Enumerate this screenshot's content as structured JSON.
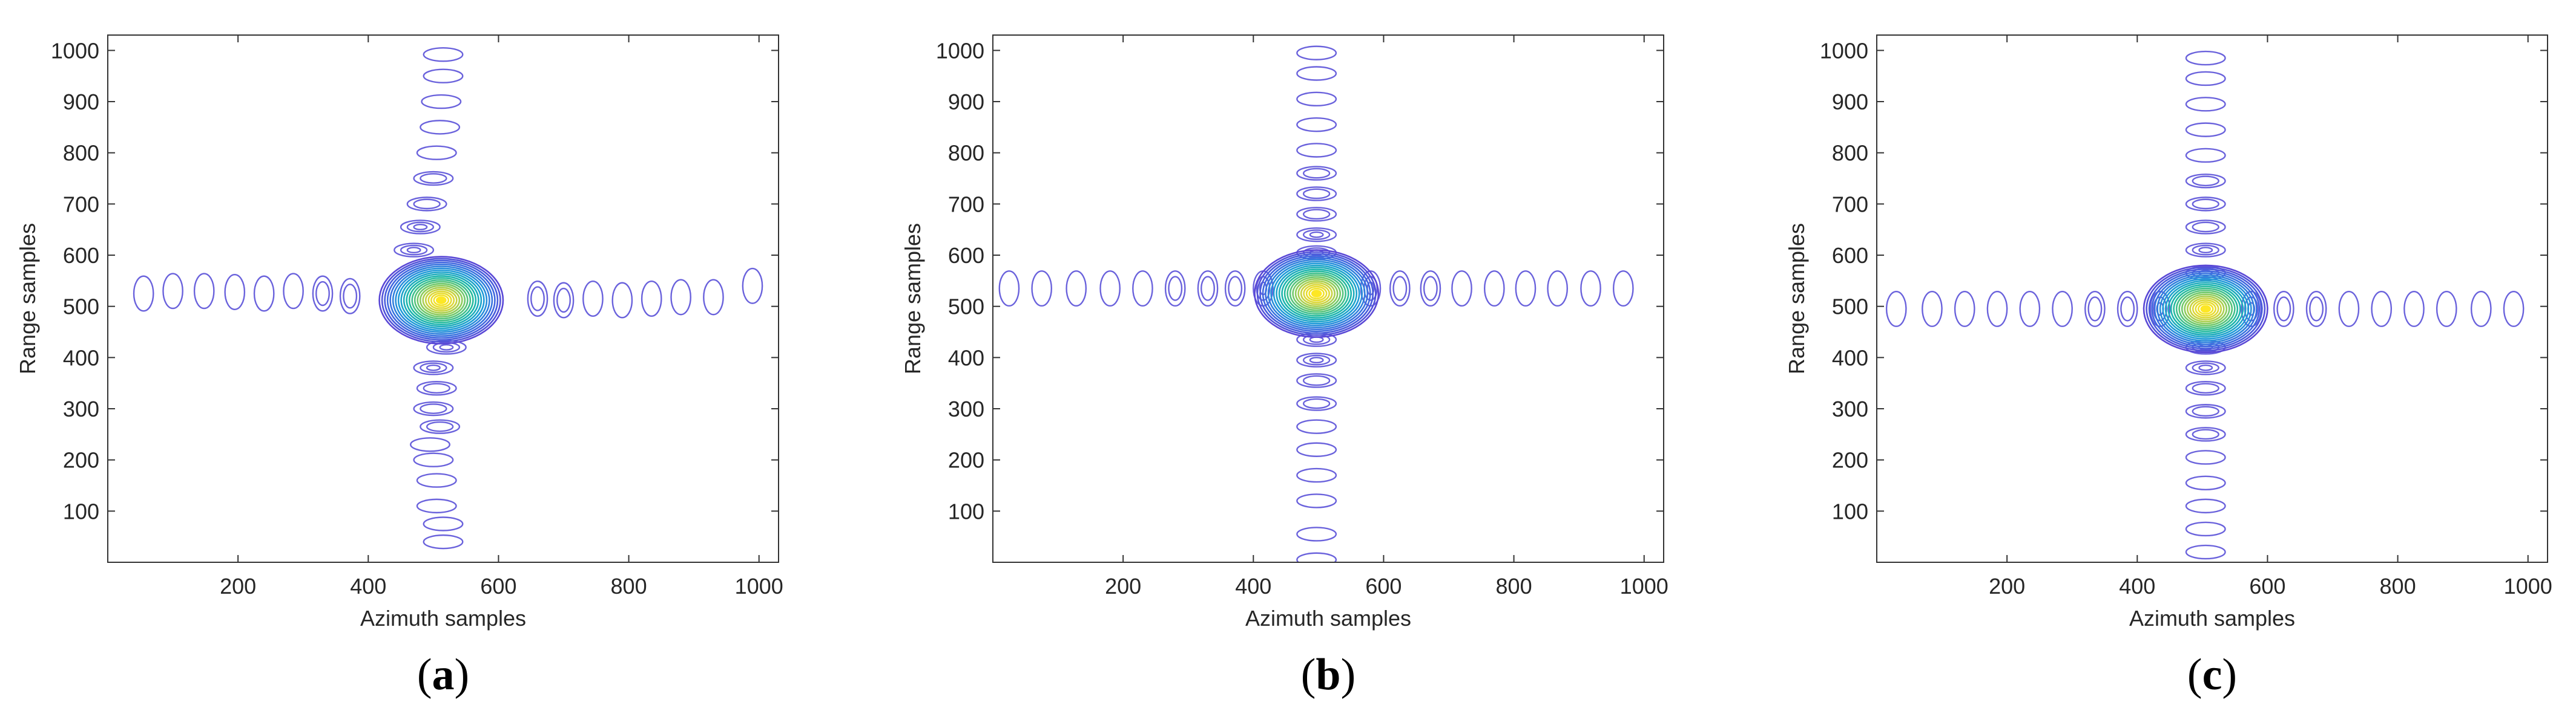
{
  "chart_data": [
    {
      "type": "contour",
      "panel_label": "(a)",
      "xlabel": "Azimuth samples",
      "ylabel": "Range samples",
      "xlim": [
        0,
        1030
      ],
      "ylim": [
        0,
        1030
      ],
      "xticks": [
        200,
        400,
        600,
        800,
        1000
      ],
      "yticks": [
        100,
        200,
        300,
        400,
        500,
        600,
        700,
        800,
        900,
        1000
      ],
      "peak": [
        512,
        512
      ],
      "horizontal_lobes": [
        {
          "x": 55,
          "y": 525
        },
        {
          "x": 100,
          "y": 530
        },
        {
          "x": 148,
          "y": 530
        },
        {
          "x": 195,
          "y": 528
        },
        {
          "x": 240,
          "y": 525
        },
        {
          "x": 285,
          "y": 530
        },
        {
          "x": 330,
          "y": 525
        },
        {
          "x": 372,
          "y": 520
        },
        {
          "x": 660,
          "y": 515
        },
        {
          "x": 700,
          "y": 512
        },
        {
          "x": 745,
          "y": 515
        },
        {
          "x": 790,
          "y": 512
        },
        {
          "x": 835,
          "y": 515
        },
        {
          "x": 880,
          "y": 518
        },
        {
          "x": 930,
          "y": 518
        },
        {
          "x": 990,
          "y": 540
        }
      ],
      "vertical_lobes": [
        {
          "x": 515,
          "y": 992
        },
        {
          "x": 515,
          "y": 950
        },
        {
          "x": 512,
          "y": 900
        },
        {
          "x": 510,
          "y": 850
        },
        {
          "x": 505,
          "y": 800
        },
        {
          "x": 500,
          "y": 750
        },
        {
          "x": 490,
          "y": 700
        },
        {
          "x": 480,
          "y": 655
        },
        {
          "x": 470,
          "y": 610
        },
        {
          "x": 520,
          "y": 420
        },
        {
          "x": 500,
          "y": 380
        },
        {
          "x": 505,
          "y": 340
        },
        {
          "x": 500,
          "y": 300
        },
        {
          "x": 510,
          "y": 265
        },
        {
          "x": 495,
          "y": 230
        },
        {
          "x": 500,
          "y": 200
        },
        {
          "x": 505,
          "y": 160
        },
        {
          "x": 505,
          "y": 110
        },
        {
          "x": 515,
          "y": 75
        },
        {
          "x": 515,
          "y": 40
        }
      ]
    },
    {
      "type": "contour",
      "panel_label": "(b)",
      "xlabel": "Azimuth samples",
      "ylabel": "Range samples",
      "xlim": [
        0,
        1030
      ],
      "ylim": [
        0,
        1030
      ],
      "xticks": [
        200,
        400,
        600,
        800,
        1000
      ],
      "yticks": [
        100,
        200,
        300,
        400,
        500,
        600,
        700,
        800,
        900,
        1000
      ],
      "peak": [
        497,
        525
      ],
      "horizontal_lobes": [
        {
          "x": 25,
          "y": 535
        },
        {
          "x": 75,
          "y": 535
        },
        {
          "x": 128,
          "y": 535
        },
        {
          "x": 180,
          "y": 535
        },
        {
          "x": 230,
          "y": 535
        },
        {
          "x": 280,
          "y": 535
        },
        {
          "x": 330,
          "y": 535
        },
        {
          "x": 372,
          "y": 535
        },
        {
          "x": 415,
          "y": 535
        },
        {
          "x": 580,
          "y": 535
        },
        {
          "x": 625,
          "y": 535
        },
        {
          "x": 672,
          "y": 535
        },
        {
          "x": 720,
          "y": 535
        },
        {
          "x": 770,
          "y": 535
        },
        {
          "x": 818,
          "y": 535
        },
        {
          "x": 867,
          "y": 535
        },
        {
          "x": 918,
          "y": 535
        },
        {
          "x": 968,
          "y": 535
        }
      ],
      "vertical_lobes": [
        {
          "x": 497,
          "y": 995
        },
        {
          "x": 497,
          "y": 955
        },
        {
          "x": 497,
          "y": 905
        },
        {
          "x": 497,
          "y": 855
        },
        {
          "x": 497,
          "y": 805
        },
        {
          "x": 497,
          "y": 760
        },
        {
          "x": 497,
          "y": 720
        },
        {
          "x": 497,
          "y": 680
        },
        {
          "x": 497,
          "y": 640
        },
        {
          "x": 497,
          "y": 605
        },
        {
          "x": 497,
          "y": 435
        },
        {
          "x": 497,
          "y": 395
        },
        {
          "x": 497,
          "y": 355
        },
        {
          "x": 497,
          "y": 310
        },
        {
          "x": 497,
          "y": 265
        },
        {
          "x": 497,
          "y": 220
        },
        {
          "x": 497,
          "y": 170
        },
        {
          "x": 497,
          "y": 120
        },
        {
          "x": 497,
          "y": 55
        },
        {
          "x": 497,
          "y": 5
        }
      ]
    },
    {
      "type": "contour",
      "panel_label": "(c)",
      "xlabel": "Azimuth samples",
      "ylabel": "Range samples",
      "xlim": [
        0,
        1030
      ],
      "ylim": [
        0,
        1030
      ],
      "xticks": [
        200,
        400,
        600,
        800,
        1000
      ],
      "yticks": [
        100,
        200,
        300,
        400,
        500,
        600,
        700,
        800,
        900,
        1000
      ],
      "peak": [
        505,
        495
      ],
      "horizontal_lobes": [
        {
          "x": 30,
          "y": 495
        },
        {
          "x": 85,
          "y": 495
        },
        {
          "x": 135,
          "y": 495
        },
        {
          "x": 185,
          "y": 495
        },
        {
          "x": 235,
          "y": 495
        },
        {
          "x": 285,
          "y": 495
        },
        {
          "x": 335,
          "y": 495
        },
        {
          "x": 385,
          "y": 495
        },
        {
          "x": 435,
          "y": 495
        },
        {
          "x": 575,
          "y": 495
        },
        {
          "x": 625,
          "y": 495
        },
        {
          "x": 675,
          "y": 495
        },
        {
          "x": 725,
          "y": 495
        },
        {
          "x": 775,
          "y": 495
        },
        {
          "x": 825,
          "y": 495
        },
        {
          "x": 875,
          "y": 495
        },
        {
          "x": 928,
          "y": 495
        },
        {
          "x": 978,
          "y": 495
        }
      ],
      "vertical_lobes": [
        {
          "x": 505,
          "y": 985
        },
        {
          "x": 505,
          "y": 945
        },
        {
          "x": 505,
          "y": 895
        },
        {
          "x": 505,
          "y": 845
        },
        {
          "x": 505,
          "y": 795
        },
        {
          "x": 505,
          "y": 745
        },
        {
          "x": 505,
          "y": 700
        },
        {
          "x": 505,
          "y": 655
        },
        {
          "x": 505,
          "y": 610
        },
        {
          "x": 505,
          "y": 565
        },
        {
          "x": 505,
          "y": 420
        },
        {
          "x": 505,
          "y": 380
        },
        {
          "x": 505,
          "y": 340
        },
        {
          "x": 505,
          "y": 295
        },
        {
          "x": 505,
          "y": 250
        },
        {
          "x": 505,
          "y": 205
        },
        {
          "x": 505,
          "y": 155
        },
        {
          "x": 505,
          "y": 110
        },
        {
          "x": 505,
          "y": 65
        },
        {
          "x": 505,
          "y": 20
        }
      ]
    }
  ]
}
